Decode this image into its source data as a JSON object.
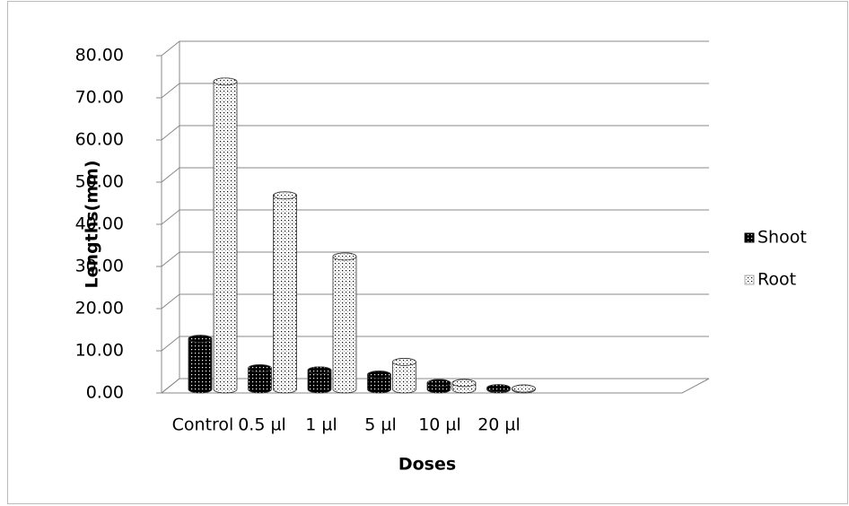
{
  "chart_data": {
    "type": "bar3d",
    "x_label": "Doses",
    "y_label": "Lengths(mm)",
    "categories": [
      "Control",
      "0.5 µl",
      "1 µl",
      "5 µl",
      "10 µl",
      "20 µl"
    ],
    "series": [
      {
        "name": "Shoot",
        "color": "#000000",
        "values": [
          12,
          5,
          4.5,
          3.5,
          1.5,
          0.3
        ]
      },
      {
        "name": "Root",
        "color": "#ffffff",
        "values": [
          73,
          46,
          31.5,
          6.5,
          1.5,
          0.2
        ]
      }
    ],
    "ylim": [
      0,
      80
    ],
    "yticks": [
      {
        "value": 0,
        "label": "0.00"
      },
      {
        "value": 10,
        "label": "10.00"
      },
      {
        "value": 20,
        "label": "20.00"
      },
      {
        "value": 30,
        "label": "30.00"
      },
      {
        "value": 40,
        "label": "40.00"
      },
      {
        "value": 50,
        "label": "50.00"
      },
      {
        "value": 60,
        "label": "60.00"
      },
      {
        "value": 70,
        "label": "70.00"
      },
      {
        "value": 80,
        "label": "80.00"
      }
    ],
    "grid": true,
    "legend": "right"
  }
}
